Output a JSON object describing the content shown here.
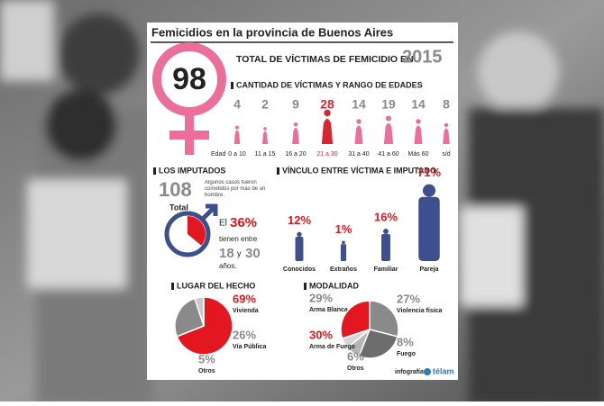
{
  "title": "Femicidios en la provincia de Buenos Aires",
  "total": {
    "value": 98,
    "label": "TOTAL DE VÍCTIMAS DE FEMICIDIO EN",
    "year": "2015",
    "color": "#ec6f9b"
  },
  "ages": {
    "title": "CANTIDAD DE VÍCTIMAS Y RANGO DE EDADES",
    "axis_label": "Edad",
    "categories": [
      "0 a 10",
      "11 a 15",
      "16 a 20",
      "21 a 30",
      "31 a 40",
      "41 a 60",
      "Más 60",
      "s/d"
    ],
    "values": [
      4,
      2,
      9,
      28,
      14,
      19,
      14,
      8
    ],
    "color": "#ec6f9b",
    "highlight_color": "#d7262f",
    "highlight": 3
  },
  "accused": {
    "title": "LOS IMPUTADOS",
    "total": 108,
    "total_label": "Total",
    "note": "Algunos casos fueron cometidos por más de un hombre.",
    "text_before": "El",
    "percent": 36,
    "percent_label": "36%",
    "text_middle": "tienen entre",
    "age_from": 18,
    "text_y": "y",
    "age_to": 30,
    "text_after": "años.",
    "color": "#3d4f8f",
    "highlight_color": "#e3171f"
  },
  "relationship": {
    "title": "VÍNCULO ENTRE VÍCTIMA E IMPUTADO",
    "categories": [
      "Conocidos",
      "Extraños",
      "Familiar",
      "Pareja"
    ],
    "values": [
      12,
      1,
      16,
      71
    ],
    "value_labels": [
      "12%",
      "1%",
      "16%",
      "71%"
    ],
    "color": "#3d4f8f"
  },
  "place": {
    "title": "LUGAR DEL HECHO",
    "categories": [
      "Vivienda",
      "Vía Pública",
      "Otros"
    ],
    "values": [
      69,
      26,
      5
    ],
    "value_labels": [
      "69%",
      "26%",
      "5%"
    ],
    "colors": [
      "#e3171f",
      "#8a8a8a",
      "#c9c9c9"
    ]
  },
  "modality": {
    "title": "MODALIDAD",
    "categories": [
      "Arma Blanca",
      "Violencia física",
      "Fuego",
      "Otros",
      "Arma de Fuego"
    ],
    "values": [
      29,
      27,
      8,
      6,
      30
    ],
    "value_labels": [
      "29%",
      "27%",
      "8%",
      "6%",
      "30%"
    ],
    "colors": [
      "#8a8a8a",
      "#6d6d6d",
      "#b5b5b5",
      "#d5d5d5",
      "#e3171f"
    ]
  },
  "credit": "infografía",
  "brand": "télam"
}
